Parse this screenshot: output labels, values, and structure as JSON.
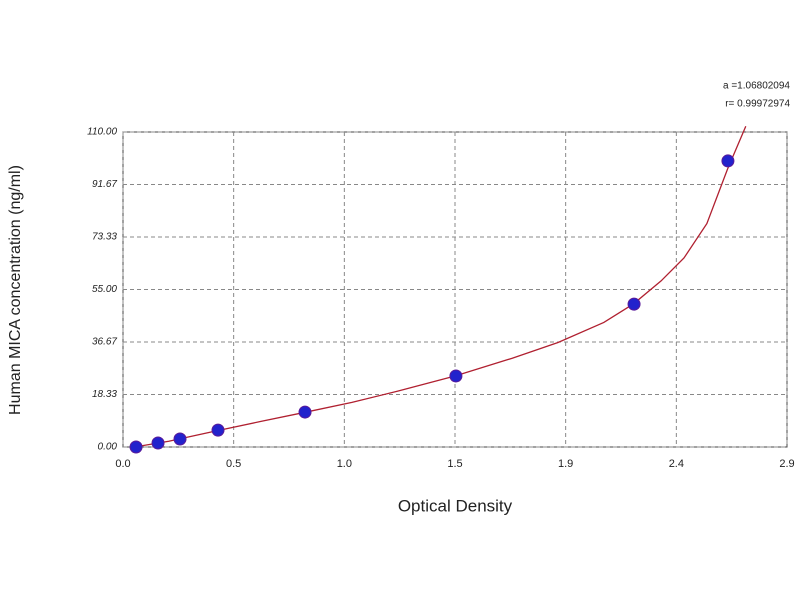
{
  "chart_data": {
    "type": "scatter",
    "x_label": "Optical Density",
    "y_label": "Human MICA concentration (ng/ml)",
    "annotations": [
      "a =1.06802094",
      "r= 0.99972974"
    ],
    "series": [
      {
        "color": "#2222cc",
        "x": [
          0.057,
          0.153,
          0.249,
          0.415,
          0.795,
          1.454,
          2.232,
          2.642
        ],
        "values": [
          0,
          1.4,
          2.8,
          5.9,
          12.2,
          24.8,
          49.9,
          99.9
        ]
      }
    ],
    "curve": {
      "color": "#b02030",
      "x": [
        0.05,
        0.2,
        0.4,
        0.6,
        0.8,
        1.0,
        1.2,
        1.45,
        1.7,
        1.9,
        2.1,
        2.23,
        2.35,
        2.45,
        2.55,
        2.64,
        2.72
      ],
      "values": [
        0,
        2.0,
        5.5,
        8.9,
        12.2,
        15.6,
        19.5,
        24.8,
        31,
        36.5,
        43.5,
        50,
        58,
        66,
        78,
        97,
        112
      ]
    },
    "xlim": [
      0,
      2.9
    ],
    "ylim": [
      0,
      110
    ],
    "xticks": [
      {
        "value": 0,
        "label": "0.0"
      },
      {
        "value": 0.4833,
        "label": "0.5"
      },
      {
        "value": 0.9667,
        "label": "1.0"
      },
      {
        "value": 1.45,
        "label": "1.5"
      },
      {
        "value": 1.9333,
        "label": "1.9"
      },
      {
        "value": 2.4167,
        "label": "2.4"
      },
      2.9
    ],
    "yticks": [
      {
        "value": 0,
        "label": "0.00"
      },
      18.33,
      36.67,
      {
        "value": 55,
        "label": "55.00"
      },
      73.33,
      91.67,
      {
        "value": 110,
        "label": "110.00"
      }
    ],
    "grid": true
  }
}
